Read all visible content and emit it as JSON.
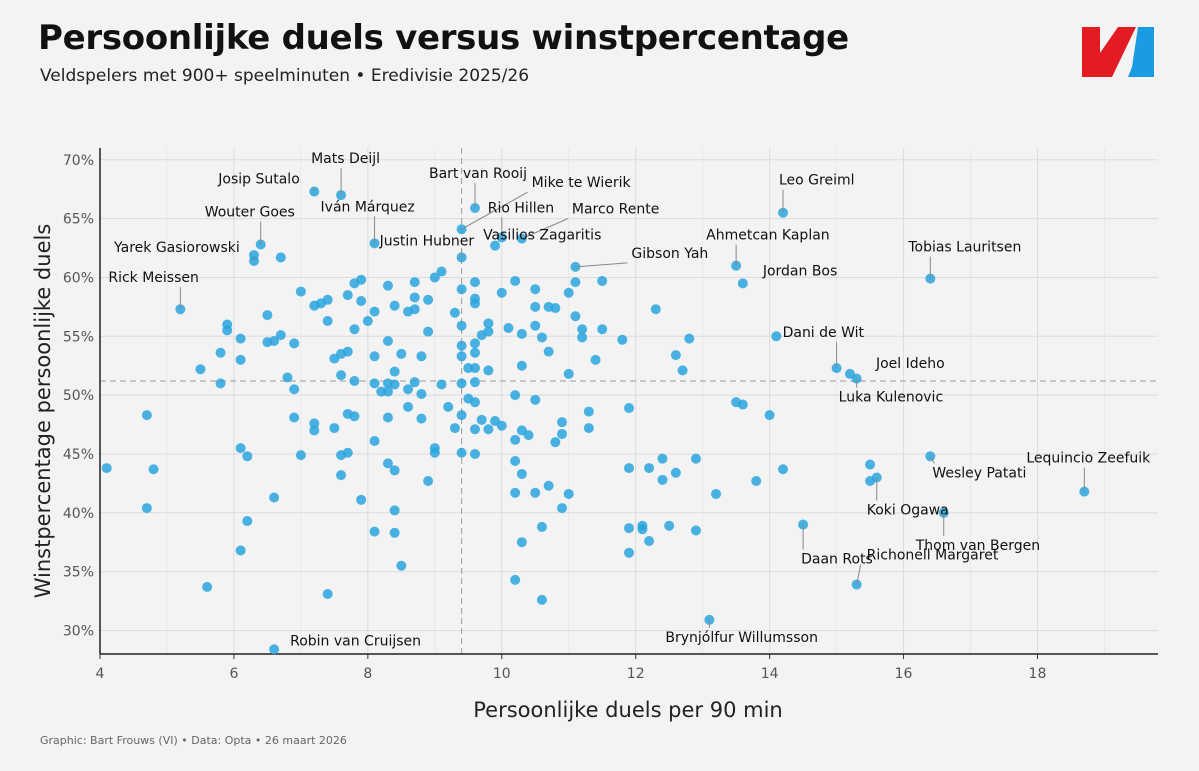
{
  "header": {
    "title": "Persoonlijke duels versus winstpercentage",
    "subtitle": "Veldspelers met 900+ speelminuten • Eredivisie 2025/26"
  },
  "footer": {
    "credit": "Graphic: Bart Frouws (VI) • Data: Opta • 26 maart 2026"
  },
  "colors": {
    "point": "#29a4dd",
    "logo_red": "#e31b23",
    "logo_blue": "#1a9be2",
    "grid": "#dcdcdc",
    "refline": "#aaaaaa"
  },
  "chart_data": {
    "type": "scatter",
    "title": "Persoonlijke duels versus winstpercentage",
    "xlabel": "Persoonlijke duels per 90 min",
    "ylabel": "Winstpercentage persoonlijke duels",
    "xlim": [
      4,
      19.8
    ],
    "ylim": [
      28,
      71
    ],
    "xticks": [
      4,
      6,
      8,
      10,
      12,
      14,
      16,
      18
    ],
    "xtick_labels": [
      "4",
      "6",
      "8",
      "10",
      "12",
      "14",
      "16",
      "18"
    ],
    "yticks": [
      30,
      35,
      40,
      45,
      50,
      55,
      60,
      65,
      70
    ],
    "ytick_labels": [
      "30%",
      "35%",
      "40%",
      "45%",
      "50%",
      "55%",
      "60%",
      "65%",
      "70%"
    ],
    "ref_x": 9.4,
    "ref_y": 51.2,
    "labeled_points": [
      {
        "name": "Mats Deijl",
        "x": 7.6,
        "y": 67.0
      },
      {
        "name": "Josip Sutalo",
        "x": 7.2,
        "y": 67.3
      },
      {
        "name": "Bart van Rooij",
        "x": 9.6,
        "y": 65.9
      },
      {
        "name": "Mike te Wierik",
        "x": 9.4,
        "y": 64.1
      },
      {
        "name": "Leo Greiml",
        "x": 14.2,
        "y": 65.5
      },
      {
        "name": "Wouter Goes",
        "x": 6.4,
        "y": 62.8
      },
      {
        "name": "Iván Márquez",
        "x": 8.1,
        "y": 62.9
      },
      {
        "name": "Rio Hillen",
        "x": 10.0,
        "y": 63.4
      },
      {
        "name": "Marco Rente",
        "x": 10.3,
        "y": 63.3
      },
      {
        "name": "Vasilios Zagaritis",
        "x": 9.9,
        "y": 62.7
      },
      {
        "name": "Yarek Gasiorowski",
        "x": 6.3,
        "y": 61.4
      },
      {
        "name": "Justin Hubner",
        "x": 9.4,
        "y": 61.7
      },
      {
        "name": "Ahmetcan Kaplan",
        "x": 13.5,
        "y": 61.0
      },
      {
        "name": "Gibson Yah",
        "x": 11.1,
        "y": 60.9
      },
      {
        "name": "Jordan Bos",
        "x": 13.6,
        "y": 59.5
      },
      {
        "name": "Tobias Lauritsen",
        "x": 16.4,
        "y": 59.9
      },
      {
        "name": "Rick Meissen",
        "x": 5.2,
        "y": 57.3
      },
      {
        "name": "Dani de Wit",
        "x": 15.0,
        "y": 52.3
      },
      {
        "name": "Joel Ideho",
        "x": 15.2,
        "y": 51.8
      },
      {
        "name": "Luka Kulenovic",
        "x": 15.3,
        "y": 51.4
      },
      {
        "name": "Wesley Patati",
        "x": 16.4,
        "y": 44.8
      },
      {
        "name": "Lequincio Zeefuik",
        "x": 18.7,
        "y": 41.8
      },
      {
        "name": "Koki Ogawa",
        "x": 15.6,
        "y": 43.0
      },
      {
        "name": "Thom van Bergen",
        "x": 16.6,
        "y": 40.0
      },
      {
        "name": "Daan Rots",
        "x": 14.5,
        "y": 39.0
      },
      {
        "name": "Richonell Margaret",
        "x": 15.3,
        "y": 33.9
      },
      {
        "name": "Brynjólfur Willumsson",
        "x": 13.1,
        "y": 30.9
      },
      {
        "name": "Robin van Cruijsen",
        "x": 6.6,
        "y": 28.4
      }
    ],
    "points": [
      [
        4.1,
        43.8
      ],
      [
        4.7,
        48.3
      ],
      [
        4.7,
        40.4
      ],
      [
        4.8,
        43.7
      ],
      [
        5.5,
        52.2
      ],
      [
        5.6,
        33.7
      ],
      [
        5.8,
        53.6
      ],
      [
        5.8,
        51.0
      ],
      [
        5.9,
        56.0
      ],
      [
        5.9,
        55.5
      ],
      [
        6.1,
        54.8
      ],
      [
        6.1,
        53.0
      ],
      [
        6.1,
        45.5
      ],
      [
        6.1,
        36.8
      ],
      [
        6.2,
        44.8
      ],
      [
        6.2,
        39.3
      ],
      [
        6.3,
        61.9
      ],
      [
        6.5,
        56.8
      ],
      [
        6.5,
        54.5
      ],
      [
        6.6,
        54.6
      ],
      [
        6.6,
        41.3
      ],
      [
        6.7,
        61.7
      ],
      [
        6.7,
        55.1
      ],
      [
        6.8,
        51.5
      ],
      [
        6.9,
        54.4
      ],
      [
        6.9,
        50.5
      ],
      [
        6.9,
        48.1
      ],
      [
        7.0,
        58.8
      ],
      [
        7.0,
        44.9
      ],
      [
        7.2,
        57.6
      ],
      [
        7.2,
        47.6
      ],
      [
        7.2,
        47.0
      ],
      [
        7.3,
        57.8
      ],
      [
        7.4,
        58.1
      ],
      [
        7.4,
        56.3
      ],
      [
        7.4,
        33.1
      ],
      [
        7.5,
        53.1
      ],
      [
        7.5,
        47.2
      ],
      [
        7.6,
        53.5
      ],
      [
        7.6,
        51.7
      ],
      [
        7.6,
        44.9
      ],
      [
        7.6,
        43.2
      ],
      [
        7.7,
        58.5
      ],
      [
        7.7,
        53.7
      ],
      [
        7.7,
        48.4
      ],
      [
        7.7,
        45.1
      ],
      [
        7.8,
        59.5
      ],
      [
        7.8,
        55.6
      ],
      [
        7.8,
        51.2
      ],
      [
        7.8,
        48.2
      ],
      [
        7.9,
        59.8
      ],
      [
        7.9,
        58.0
      ],
      [
        7.9,
        41.1
      ],
      [
        8.0,
        56.3
      ],
      [
        8.1,
        57.1
      ],
      [
        8.1,
        53.3
      ],
      [
        8.1,
        51.0
      ],
      [
        8.1,
        46.1
      ],
      [
        8.1,
        38.4
      ],
      [
        8.2,
        50.3
      ],
      [
        8.3,
        59.3
      ],
      [
        8.3,
        54.6
      ],
      [
        8.3,
        51.0
      ],
      [
        8.3,
        50.3
      ],
      [
        8.3,
        48.1
      ],
      [
        8.3,
        44.2
      ],
      [
        8.4,
        57.6
      ],
      [
        8.4,
        52.0
      ],
      [
        8.4,
        50.9
      ],
      [
        8.4,
        43.6
      ],
      [
        8.4,
        40.2
      ],
      [
        8.4,
        38.3
      ],
      [
        8.5,
        53.5
      ],
      [
        8.5,
        35.5
      ],
      [
        8.6,
        57.1
      ],
      [
        8.6,
        50.5
      ],
      [
        8.6,
        49.0
      ],
      [
        8.7,
        59.6
      ],
      [
        8.7,
        58.3
      ],
      [
        8.7,
        57.3
      ],
      [
        8.7,
        51.1
      ],
      [
        8.8,
        53.3
      ],
      [
        8.8,
        50.1
      ],
      [
        8.8,
        48.0
      ],
      [
        8.9,
        58.1
      ],
      [
        8.9,
        55.4
      ],
      [
        8.9,
        42.7
      ],
      [
        9.0,
        60.0
      ],
      [
        9.0,
        45.5
      ],
      [
        9.0,
        45.1
      ],
      [
        9.1,
        60.5
      ],
      [
        9.1,
        50.9
      ],
      [
        9.2,
        49.0
      ],
      [
        9.3,
        57.0
      ],
      [
        9.3,
        47.2
      ],
      [
        9.4,
        59.0
      ],
      [
        9.4,
        55.9
      ],
      [
        9.4,
        54.2
      ],
      [
        9.4,
        53.3
      ],
      [
        9.4,
        51.0
      ],
      [
        9.4,
        48.3
      ],
      [
        9.4,
        45.1
      ],
      [
        9.5,
        52.3
      ],
      [
        9.5,
        49.7
      ],
      [
        9.6,
        59.6
      ],
      [
        9.6,
        58.2
      ],
      [
        9.6,
        57.8
      ],
      [
        9.6,
        54.4
      ],
      [
        9.6,
        53.6
      ],
      [
        9.6,
        52.3
      ],
      [
        9.6,
        51.1
      ],
      [
        9.6,
        49.4
      ],
      [
        9.6,
        47.1
      ],
      [
        9.6,
        45.0
      ],
      [
        9.7,
        55.1
      ],
      [
        9.7,
        47.9
      ],
      [
        9.8,
        56.1
      ],
      [
        9.8,
        55.4
      ],
      [
        9.8,
        52.1
      ],
      [
        9.8,
        47.1
      ],
      [
        9.9,
        47.8
      ],
      [
        10.0,
        58.7
      ],
      [
        10.0,
        47.4
      ],
      [
        10.1,
        55.7
      ],
      [
        10.2,
        59.7
      ],
      [
        10.2,
        50.0
      ],
      [
        10.2,
        46.2
      ],
      [
        10.2,
        44.4
      ],
      [
        10.2,
        41.7
      ],
      [
        10.2,
        34.3
      ],
      [
        10.3,
        55.2
      ],
      [
        10.3,
        52.5
      ],
      [
        10.3,
        47.0
      ],
      [
        10.3,
        43.3
      ],
      [
        10.3,
        37.5
      ],
      [
        10.4,
        46.6
      ],
      [
        10.5,
        59.0
      ],
      [
        10.5,
        57.5
      ],
      [
        10.5,
        55.9
      ],
      [
        10.5,
        49.6
      ],
      [
        10.5,
        41.7
      ],
      [
        10.6,
        54.9
      ],
      [
        10.6,
        38.8
      ],
      [
        10.6,
        32.6
      ],
      [
        10.7,
        57.5
      ],
      [
        10.7,
        53.7
      ],
      [
        10.7,
        42.3
      ],
      [
        10.8,
        57.4
      ],
      [
        10.8,
        46.0
      ],
      [
        10.9,
        47.7
      ],
      [
        10.9,
        46.7
      ],
      [
        10.9,
        40.4
      ],
      [
        11.0,
        58.7
      ],
      [
        11.0,
        51.8
      ],
      [
        11.0,
        41.6
      ],
      [
        11.1,
        56.7
      ],
      [
        11.1,
        59.6
      ],
      [
        11.2,
        55.6
      ],
      [
        11.2,
        54.9
      ],
      [
        11.3,
        48.6
      ],
      [
        11.3,
        47.2
      ],
      [
        11.4,
        53.0
      ],
      [
        11.5,
        59.7
      ],
      [
        11.5,
        55.6
      ],
      [
        11.8,
        54.7
      ],
      [
        11.9,
        48.9
      ],
      [
        11.9,
        43.8
      ],
      [
        11.9,
        38.7
      ],
      [
        11.9,
        36.6
      ],
      [
        12.1,
        38.9
      ],
      [
        12.1,
        38.6
      ],
      [
        12.2,
        43.8
      ],
      [
        12.2,
        37.6
      ],
      [
        12.3,
        57.3
      ],
      [
        12.4,
        44.6
      ],
      [
        12.4,
        42.8
      ],
      [
        12.5,
        38.9
      ],
      [
        12.6,
        53.4
      ],
      [
        12.6,
        43.4
      ],
      [
        12.7,
        52.1
      ],
      [
        12.8,
        54.8
      ],
      [
        12.9,
        44.6
      ],
      [
        12.9,
        38.5
      ],
      [
        13.2,
        41.6
      ],
      [
        13.5,
        49.4
      ],
      [
        13.6,
        49.2
      ],
      [
        13.8,
        42.7
      ],
      [
        14.0,
        48.3
      ],
      [
        14.1,
        55.0
      ],
      [
        14.2,
        43.7
      ],
      [
        15.5,
        44.1
      ],
      [
        15.5,
        42.7
      ]
    ]
  }
}
